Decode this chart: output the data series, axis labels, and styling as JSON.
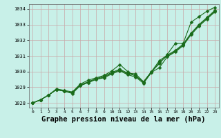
{
  "bg_color": "#c8f0e8",
  "grid_color": "#c8a8a8",
  "line_color": "#1a6b1a",
  "marker": "D",
  "markersize": 2.5,
  "linewidth": 0.8,
  "title": "Graphe pression niveau de la mer (hPa)",
  "title_fontsize": 7.5,
  "ylim": [
    1027.7,
    1034.3
  ],
  "xlim": [
    -0.5,
    23.5
  ],
  "yticks": [
    1028,
    1029,
    1030,
    1031,
    1032,
    1033,
    1034
  ],
  "xticks": [
    0,
    1,
    2,
    3,
    4,
    5,
    6,
    7,
    8,
    9,
    10,
    11,
    12,
    13,
    14,
    15,
    16,
    17,
    18,
    19,
    20,
    21,
    22,
    23
  ],
  "series": [
    [
      1028.0,
      1028.2,
      1028.5,
      1028.9,
      1028.8,
      1028.7,
      1029.2,
      1029.45,
      1029.6,
      1029.75,
      1030.05,
      1030.45,
      1030.0,
      1029.7,
      1029.35,
      1030.0,
      1030.5,
      1031.1,
      1031.8,
      1031.8,
      1033.15,
      1033.5,
      1033.85,
      1034.1
    ],
    [
      1028.0,
      1028.2,
      1028.5,
      1028.85,
      1028.75,
      1028.65,
      1029.15,
      1029.35,
      1029.55,
      1029.7,
      1029.95,
      1030.15,
      1029.9,
      1029.85,
      1029.35,
      1030.0,
      1030.7,
      1031.05,
      1031.35,
      1031.75,
      1032.45,
      1033.0,
      1033.45,
      1033.9
    ],
    [
      1028.0,
      1028.2,
      1028.5,
      1028.85,
      1028.75,
      1028.65,
      1029.1,
      1029.3,
      1029.5,
      1029.65,
      1029.9,
      1030.1,
      1029.85,
      1029.75,
      1029.3,
      1029.95,
      1030.6,
      1031.0,
      1031.3,
      1031.7,
      1032.4,
      1032.95,
      1033.4,
      1033.85
    ],
    [
      1028.0,
      1028.2,
      1028.5,
      1028.85,
      1028.75,
      1028.6,
      1029.1,
      1029.3,
      1029.5,
      1029.6,
      1029.85,
      1030.05,
      1029.8,
      1029.65,
      1029.25,
      1029.95,
      1030.25,
      1030.95,
      1031.25,
      1031.65,
      1032.35,
      1032.9,
      1033.35,
      1033.8
    ]
  ]
}
